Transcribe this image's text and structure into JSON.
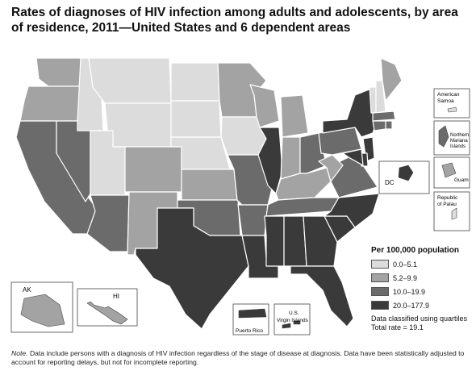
{
  "title": "Rates of diagnoses of HIV infection among adults and adolescents, by area of residence, 2011—United States and 6 dependent areas",
  "colors": {
    "class1": "#dcdcdc",
    "class2": "#a3a3a3",
    "class3": "#6b6b6b",
    "class4": "#3a3a3a",
    "border": "#ffffff",
    "outline": "#444444"
  },
  "legend": {
    "title": "Per 100,000 population",
    "items": [
      {
        "label": "0.0–5.1"
      },
      {
        "label": "5.2–9.9"
      },
      {
        "label": "10.0–19.9"
      },
      {
        "label": "20.0–177.9"
      }
    ],
    "note_line1": "Data classified using quartiles",
    "note_line2": "Total rate = 19.1"
  },
  "inset_labels": {
    "ak": "AK",
    "hi": "HI",
    "dc": "DC",
    "american_samoa": "American Samoa",
    "northern_mariana": "Northern Mariana Islands",
    "guam": "Guam",
    "palau": "Republic of Palau",
    "puerto_rico": "Puerto Rico",
    "virgin_islands": "U.S. Virgin Islands"
  },
  "note": {
    "label": "Note.",
    "text": "Data include persons with a diagnosis of HIV infection regardless of the stage of disease at diagnosis. Data have been statistically adjusted to account for reporting delays, but not for incomplete reporting."
  },
  "states": {
    "WA": 2,
    "OR": 2,
    "CA": 3,
    "NV": 3,
    "ID": 1,
    "MT": 1,
    "WY": 1,
    "UT": 1,
    "AZ": 3,
    "CO": 2,
    "NM": 2,
    "ND": 1,
    "SD": 1,
    "NE": 1,
    "KS": 2,
    "OK": 3,
    "TX": 4,
    "MN": 2,
    "IA": 1,
    "MO": 3,
    "AR": 3,
    "LA": 4,
    "WI": 2,
    "IL": 4,
    "MI": 2,
    "IN": 2,
    "OH": 3,
    "KY": 2,
    "TN": 3,
    "MS": 4,
    "AL": 4,
    "GA": 4,
    "FL": 4,
    "SC": 4,
    "NC": 4,
    "VA": 3,
    "WV": 2,
    "PA": 3,
    "NY": 4,
    "VT": 1,
    "NH": 1,
    "ME": 2,
    "MA": 3,
    "CT": 3,
    "RI": 3,
    "NJ": 4,
    "DE": 4,
    "MD": 4,
    "DC": 4,
    "AK": 2,
    "HI": 2,
    "PR": 4,
    "VI": 4,
    "GU": 2,
    "MP": 3,
    "AS": 1,
    "PW": 1
  }
}
